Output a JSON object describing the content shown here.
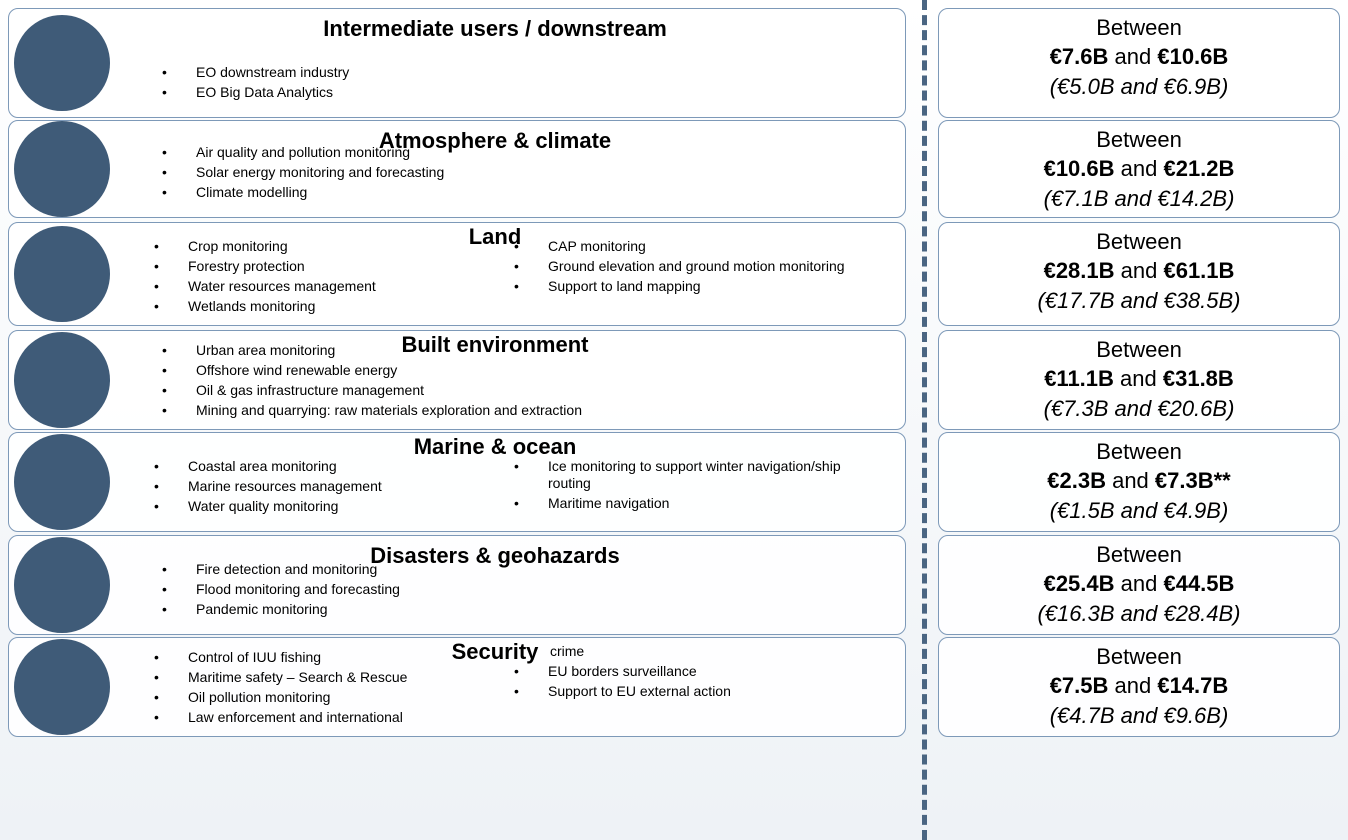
{
  "sections": [
    {
      "title": "Intermediate users / downstream",
      "left": [
        "EO downstream industry",
        "EO Big Data Analytics"
      ],
      "right": [],
      "between": "Between",
      "low": "€7.6B",
      "and": "and",
      "high": "€10.6B",
      "paren": "(€5.0B and €6.9B)"
    },
    {
      "title": "Atmosphere & climate",
      "left": [
        "Air quality and pollution monitoring",
        "Solar energy monitoring and forecasting",
        "Climate modelling"
      ],
      "right": [],
      "between": "Between",
      "low": "€10.6B",
      "and": "and",
      "high": "€21.2B",
      "paren": "(€7.1B and €14.2B)"
    },
    {
      "title": "Land",
      "left": [
        "Crop monitoring",
        "Forestry protection",
        "Water resources management",
        "Wetlands monitoring"
      ],
      "right": [
        "CAP monitoring",
        "Ground elevation and ground motion monitoring",
        "Support to land mapping"
      ],
      "between": "Between",
      "low": "€28.1B",
      "and": "and",
      "high": "€61.1B",
      "paren": "(€17.7B and €38.5B)"
    },
    {
      "title": "Built environment",
      "left": [
        "Urban area monitoring",
        "Offshore wind renewable energy",
        "Oil & gas infrastructure management",
        "Mining and quarrying: raw materials exploration and extraction"
      ],
      "right": [],
      "between": "Between",
      "low": "€11.1B",
      "and": "and",
      "high": "€31.8B",
      "paren": "(€7.3B and €20.6B)"
    },
    {
      "title": "Marine & ocean",
      "left": [
        "Coastal area monitoring",
        "Marine resources management",
        "Water quality monitoring"
      ],
      "right": [
        "Ice monitoring to support winter navigation/ship routing",
        "Maritime navigation"
      ],
      "between": "Between",
      "low": "€2.3B",
      "and": "and",
      "high": "€7.3B**",
      "paren": "(€1.5B and €4.9B)"
    },
    {
      "title": "Disasters & geohazards",
      "left": [
        "Fire detection and monitoring",
        "Flood monitoring and forecasting",
        "Pandemic monitoring"
      ],
      "right": [],
      "between": "Between",
      "low": "€25.4B",
      "and": "and",
      "high": "€44.5B",
      "paren": "(€16.3B and €28.4B)"
    },
    {
      "title": "Security",
      "left": [
        "Control of IUU fishing",
        "Maritime safety – Search & Rescue",
        "Oil pollution monitoring",
        "Law enforcement and international"
      ],
      "continuation": "crime",
      "right": [
        "EU borders surveillance",
        "Support to EU external action"
      ],
      "between": "Between",
      "low": "€7.5B",
      "and": "and",
      "high": "€14.7B",
      "paren": "(€4.7B and €9.6B)"
    }
  ]
}
